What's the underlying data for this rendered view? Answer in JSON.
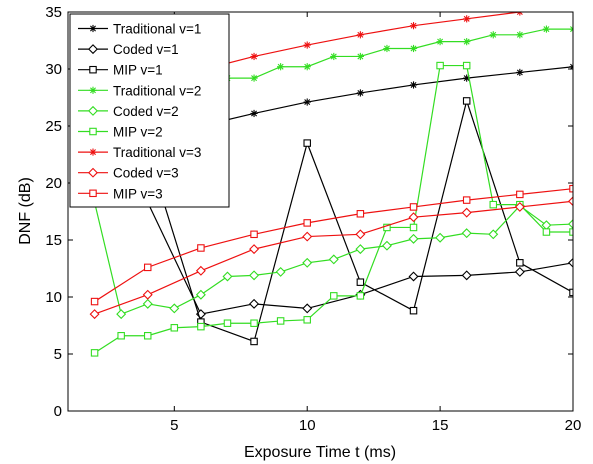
{
  "chart_data": {
    "type": "line",
    "xlabel": "Exposure Time t (ms)",
    "ylabel": "DNF (dB)",
    "xlim": [
      1,
      20
    ],
    "ylim": [
      0,
      35
    ],
    "xticks": [
      5,
      10,
      15,
      20
    ],
    "yticks": [
      0,
      5,
      10,
      15,
      20,
      25,
      30,
      35
    ],
    "grid": false,
    "legend_position": "top-left",
    "series": [
      {
        "name": "Traditional v=1",
        "color": "#000000",
        "marker": "asterisk",
        "x": [
          4,
          6,
          8,
          10,
          12,
          14,
          16,
          18,
          20
        ],
        "y": [
          24.0,
          25.0,
          26.1,
          27.1,
          27.9,
          28.6,
          29.2,
          29.7,
          30.2
        ]
      },
      {
        "name": "Coded v=1",
        "color": "#000000",
        "marker": "diamond",
        "x": [
          4,
          6,
          8,
          10,
          12,
          14,
          16,
          18,
          20
        ],
        "y": [
          18.3,
          8.5,
          9.4,
          9.0,
          10.2,
          11.8,
          11.9,
          12.2,
          13.0
        ]
      },
      {
        "name": "MIP v=1",
        "color": "#000000",
        "marker": "square",
        "x": [
          4,
          6,
          8,
          10,
          12,
          14,
          16,
          18,
          20
        ],
        "y": [
          22.8,
          7.8,
          6.1,
          23.5,
          11.3,
          8.8,
          27.2,
          13.0,
          10.4
        ]
      },
      {
        "name": "Traditional v=2",
        "color": "#33dd22",
        "marker": "asterisk",
        "x": [
          2,
          3,
          4,
          5,
          6,
          7,
          8,
          9,
          10,
          11,
          12,
          13,
          14,
          15,
          16,
          17,
          18,
          19,
          20
        ],
        "y": [
          26.4,
          27.2,
          27.8,
          28.4,
          28.8,
          29.2,
          29.2,
          30.2,
          30.2,
          31.1,
          31.1,
          31.8,
          31.8,
          32.4,
          32.4,
          33.0,
          33.0,
          33.5,
          33.5
        ]
      },
      {
        "name": "Coded v=2",
        "color": "#33dd22",
        "marker": "diamond",
        "x": [
          2,
          3,
          4,
          5,
          6,
          7,
          8,
          9,
          10,
          11,
          12,
          13,
          14,
          15,
          16,
          17,
          18,
          19,
          20
        ],
        "y": [
          18.3,
          8.5,
          9.4,
          9.0,
          10.2,
          11.8,
          11.9,
          12.2,
          13.0,
          13.3,
          14.2,
          14.5,
          15.1,
          15.2,
          15.6,
          15.5,
          18.0,
          16.3,
          16.4
        ]
      },
      {
        "name": "MIP v=2",
        "color": "#33dd22",
        "marker": "square",
        "x": [
          2,
          3,
          4,
          5,
          6,
          7,
          8,
          9,
          10,
          11,
          12,
          13,
          14,
          15,
          16,
          17,
          18,
          19,
          20
        ],
        "y": [
          5.1,
          6.6,
          6.6,
          7.3,
          7.4,
          7.7,
          7.7,
          7.9,
          8.0,
          10.1,
          10.1,
          16.1,
          16.1,
          30.3,
          30.3,
          18.1,
          18.1,
          15.7,
          15.7
        ]
      },
      {
        "name": "Traditional v=3",
        "color": "#ee1111",
        "marker": "asterisk",
        "x": [
          2,
          4,
          6,
          8,
          10,
          12,
          14,
          16,
          18
        ],
        "y": [
          27.2,
          28.6,
          29.9,
          31.1,
          32.1,
          33.0,
          33.8,
          34.4,
          35.0
        ]
      },
      {
        "name": "Coded v=3",
        "color": "#ee1111",
        "marker": "diamond",
        "x": [
          2,
          4,
          6,
          8,
          10,
          12,
          14,
          16,
          18,
          20
        ],
        "y": [
          8.5,
          10.2,
          12.3,
          14.2,
          15.3,
          15.5,
          17.0,
          17.4,
          17.9,
          18.4
        ]
      },
      {
        "name": "MIP v=3",
        "color": "#ee1111",
        "marker": "square",
        "x": [
          2,
          4,
          6,
          8,
          10,
          12,
          14,
          16,
          18,
          20
        ],
        "y": [
          9.6,
          12.6,
          14.3,
          15.5,
          16.5,
          17.3,
          17.9,
          18.5,
          19.0,
          19.5
        ]
      }
    ]
  }
}
